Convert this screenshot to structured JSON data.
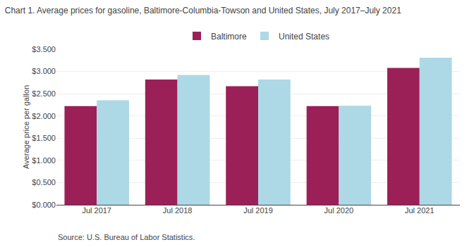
{
  "chart_data": {
    "type": "bar",
    "title": "Chart 1. Average prices for gasoline, Baltimore-Columbia-Towson and United States, July 2017–July 2021",
    "ylabel": "Average price per gallon",
    "source": "Source: U.S. Bureau of Labor Statistics.",
    "categories": [
      "Jul 2017",
      "Jul 2018",
      "Jul 2019",
      "Jul 2020",
      "Jul 2021"
    ],
    "series": [
      {
        "name": "Baltimore",
        "color": "#9B2057",
        "values": [
          2.22,
          2.82,
          2.67,
          2.22,
          3.08
        ]
      },
      {
        "name": "United States",
        "color": "#ADD8E6",
        "values": [
          2.35,
          2.92,
          2.82,
          2.23,
          3.31
        ]
      }
    ],
    "ylim": [
      0.0,
      3.5
    ],
    "yticks": [
      {
        "value": 0.0,
        "label": "$0.000"
      },
      {
        "value": 0.5,
        "label": "$0.500"
      },
      {
        "value": 1.0,
        "label": "$1.000"
      },
      {
        "value": 1.5,
        "label": "$1.500"
      },
      {
        "value": 2.0,
        "label": "$2.000"
      },
      {
        "value": 2.5,
        "label": "$2.500"
      },
      {
        "value": 3.0,
        "label": "$3.000"
      },
      {
        "value": 3.5,
        "label": "$3.500"
      }
    ],
    "grid": true,
    "legend": "top"
  }
}
